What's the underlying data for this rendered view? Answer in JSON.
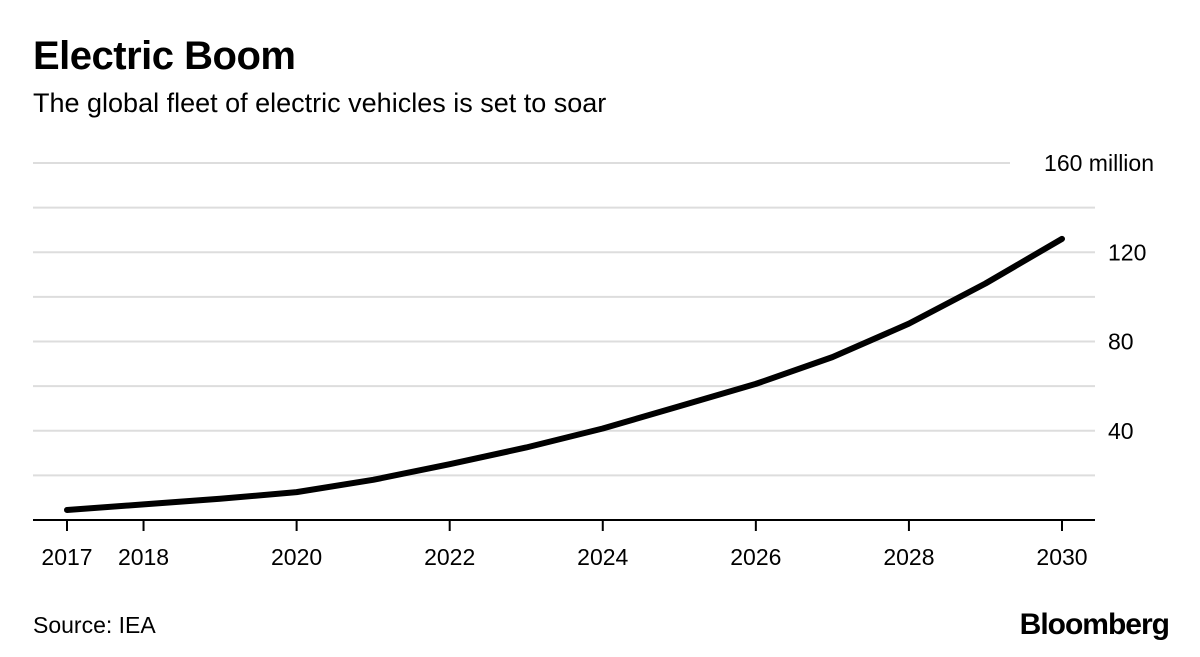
{
  "title": "Electric Boom",
  "subtitle": "The global fleet of electric vehicles is set to soar",
  "source": "Source: IEA",
  "logo": "Bloomberg",
  "chart_data": {
    "type": "line",
    "title": "Electric Boom",
    "subtitle": "The global fleet of electric vehicles is set to soar",
    "x": [
      2017,
      2018,
      2019,
      2020,
      2021,
      2022,
      2023,
      2024,
      2025,
      2026,
      2027,
      2028,
      2029,
      2030
    ],
    "series": [
      {
        "values": [
          4.5,
          7,
          9.5,
          12.5,
          18,
          25,
          32.5,
          41,
          51,
          61,
          73,
          88,
          106,
          126
        ],
        "color": "#000000"
      }
    ],
    "xticks": [
      2017,
      2018,
      2020,
      2022,
      2024,
      2026,
      2028,
      2030
    ],
    "xtick_labels": [
      "2017",
      "2018",
      "2020",
      "2022",
      "2024",
      "2026",
      "2028",
      "2030"
    ],
    "yticks": [
      40,
      80,
      120,
      160
    ],
    "ytick_labels": [
      "40",
      "80",
      "120",
      "160 million"
    ],
    "gridlines": [
      20,
      40,
      60,
      80,
      100,
      120,
      140,
      160
    ],
    "ylim": [
      0,
      160
    ],
    "xlim": [
      2017,
      2030
    ],
    "grid": true,
    "grid_color": "#dddddd",
    "yaxis_position": "right"
  }
}
